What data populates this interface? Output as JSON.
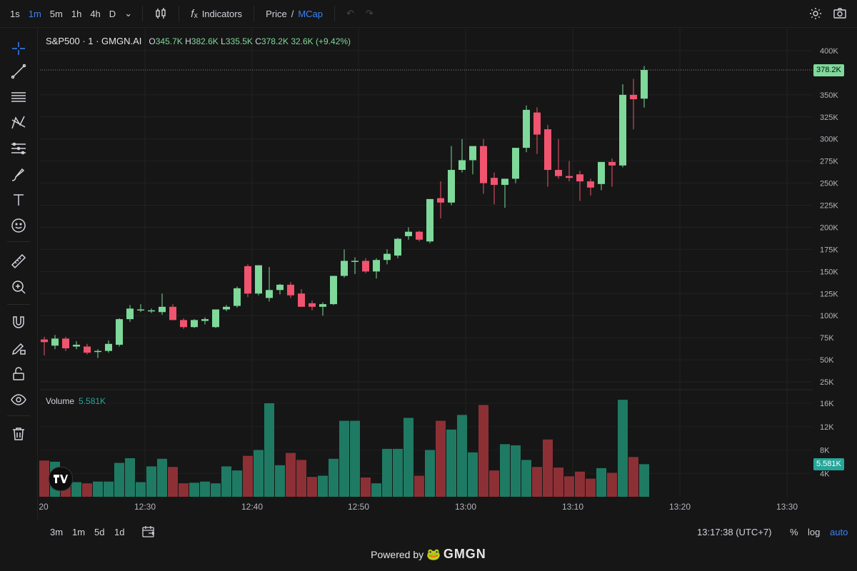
{
  "toolbar": {
    "timeframes": [
      "1s",
      "1m",
      "5m",
      "1h",
      "4h",
      "D"
    ],
    "active_timeframe": "1m",
    "indicators_label": "Indicators",
    "price_label": "Price",
    "price_sep": "/",
    "mcap_label": "MCap"
  },
  "legend": {
    "symbol": "S&P500 · 1 · GMGN.AI",
    "o_key": "O",
    "o": "345.7K",
    "h_key": "H",
    "h": "382.6K",
    "l_key": "L",
    "l": "335.5K",
    "c_key": "C",
    "c": "378.2K",
    "change": "32.6K (+9.42%)"
  },
  "volume_legend": {
    "label": "Volume",
    "value": "5.581K"
  },
  "price_tag": "378.2K",
  "volume_tag": "5.581K",
  "bottom": {
    "ranges": [
      "3m",
      "1m",
      "5d",
      "1d"
    ],
    "clock": "13:17:38 (UTC+7)",
    "percent": "%",
    "log": "log",
    "auto": "auto"
  },
  "footer": {
    "powered": "Powered by",
    "brand": "GMGN"
  },
  "colors": {
    "up": "#7ed99a",
    "down": "#f0546f",
    "vol_up": "#1f7a63",
    "vol_down": "#8c3036",
    "bg": "#161616",
    "accent": "#3b82f6"
  },
  "chart_data": {
    "type": "candlestick",
    "x_ticks": [
      "20",
      "12:30",
      "12:40",
      "12:50",
      "13:00",
      "13:10",
      "13:20",
      "13:30"
    ],
    "y_ticks": [
      "400K",
      "350K",
      "325K",
      "300K",
      "275K",
      "250K",
      "225K",
      "200K",
      "175K",
      "150K",
      "125K",
      "100K",
      "75K",
      "50K",
      "25K"
    ],
    "vol_ticks": [
      "16K",
      "12K",
      "8K",
      "4K"
    ],
    "ylim": [
      0,
      400000
    ],
    "vol_ylim": [
      0,
      17500
    ],
    "candles": [
      {
        "o": 73,
        "h": 76,
        "l": 55,
        "c": 70
      },
      {
        "o": 66,
        "h": 78,
        "l": 62,
        "c": 74
      },
      {
        "o": 74,
        "h": 76,
        "l": 60,
        "c": 63
      },
      {
        "o": 65,
        "h": 71,
        "l": 62,
        "c": 67
      },
      {
        "o": 65,
        "h": 68,
        "l": 56,
        "c": 58
      },
      {
        "o": 59,
        "h": 62,
        "l": 52,
        "c": 60
      },
      {
        "o": 60,
        "h": 72,
        "l": 58,
        "c": 68
      },
      {
        "o": 67,
        "h": 97,
        "l": 65,
        "c": 96
      },
      {
        "o": 96,
        "h": 112,
        "l": 93,
        "c": 108
      },
      {
        "o": 106,
        "h": 113,
        "l": 104,
        "c": 107
      },
      {
        "o": 105,
        "h": 108,
        "l": 103,
        "c": 106
      },
      {
        "o": 104,
        "h": 125,
        "l": 101,
        "c": 110
      },
      {
        "o": 110,
        "h": 113,
        "l": 95,
        "c": 95
      },
      {
        "o": 95,
        "h": 97,
        "l": 85,
        "c": 87
      },
      {
        "o": 87,
        "h": 96,
        "l": 86,
        "c": 95
      },
      {
        "o": 94,
        "h": 98,
        "l": 90,
        "c": 96
      },
      {
        "o": 87,
        "h": 104,
        "l": 86,
        "c": 107
      },
      {
        "o": 107,
        "h": 112,
        "l": 105,
        "c": 110
      },
      {
        "o": 111,
        "h": 133,
        "l": 109,
        "c": 131
      },
      {
        "o": 156,
        "h": 158,
        "l": 121,
        "c": 125
      },
      {
        "o": 125,
        "h": 157,
        "l": 123,
        "c": 157
      },
      {
        "o": 120,
        "h": 155,
        "l": 116,
        "c": 129
      },
      {
        "o": 129,
        "h": 136,
        "l": 124,
        "c": 135
      },
      {
        "o": 135,
        "h": 138,
        "l": 120,
        "c": 123
      },
      {
        "o": 125,
        "h": 130,
        "l": 110,
        "c": 110
      },
      {
        "o": 114,
        "h": 117,
        "l": 106,
        "c": 110
      },
      {
        "o": 110,
        "h": 115,
        "l": 100,
        "c": 113
      },
      {
        "o": 113,
        "h": 145,
        "l": 112,
        "c": 145
      },
      {
        "o": 145,
        "h": 175,
        "l": 143,
        "c": 162
      },
      {
        "o": 162,
        "h": 166,
        "l": 147,
        "c": 162
      },
      {
        "o": 162,
        "h": 165,
        "l": 148,
        "c": 150
      },
      {
        "o": 150,
        "h": 165,
        "l": 142,
        "c": 163
      },
      {
        "o": 163,
        "h": 175,
        "l": 158,
        "c": 170
      },
      {
        "o": 168,
        "h": 188,
        "l": 165,
        "c": 187
      },
      {
        "o": 190,
        "h": 200,
        "l": 186,
        "c": 195
      },
      {
        "o": 195,
        "h": 196,
        "l": 184,
        "c": 186
      },
      {
        "o": 184,
        "h": 232,
        "l": 182,
        "c": 232
      },
      {
        "o": 233,
        "h": 252,
        "l": 210,
        "c": 228
      },
      {
        "o": 228,
        "h": 292,
        "l": 225,
        "c": 265
      },
      {
        "o": 265,
        "h": 300,
        "l": 262,
        "c": 276
      },
      {
        "o": 276,
        "h": 287,
        "l": 260,
        "c": 292
      },
      {
        "o": 292,
        "h": 300,
        "l": 238,
        "c": 250
      },
      {
        "o": 256,
        "h": 262,
        "l": 226,
        "c": 248
      },
      {
        "o": 248,
        "h": 255,
        "l": 222,
        "c": 255
      },
      {
        "o": 255,
        "h": 290,
        "l": 250,
        "c": 290
      },
      {
        "o": 290,
        "h": 338,
        "l": 285,
        "c": 333
      },
      {
        "o": 330,
        "h": 336,
        "l": 283,
        "c": 305
      },
      {
        "o": 311,
        "h": 316,
        "l": 246,
        "c": 265
      },
      {
        "o": 265,
        "h": 300,
        "l": 255,
        "c": 258
      },
      {
        "o": 258,
        "h": 275,
        "l": 252,
        "c": 256
      },
      {
        "o": 260,
        "h": 264,
        "l": 230,
        "c": 252
      },
      {
        "o": 252,
        "h": 255,
        "l": 236,
        "c": 245
      },
      {
        "o": 249,
        "h": 271,
        "l": 242,
        "c": 274
      },
      {
        "o": 274,
        "h": 278,
        "l": 246,
        "c": 270
      },
      {
        "o": 270,
        "h": 362,
        "l": 268,
        "c": 350
      },
      {
        "o": 350,
        "h": 368,
        "l": 311,
        "c": 345
      },
      {
        "o": 345.7,
        "h": 382.6,
        "l": 335.5,
        "c": 378.2
      }
    ],
    "volumes": [
      6.2,
      6.0,
      4.1,
      2.5,
      2.3,
      2.6,
      2.6,
      5.8,
      6.6,
      2.5,
      5.2,
      6.5,
      5.1,
      2.3,
      2.4,
      2.6,
      2.3,
      5.2,
      4.5,
      7.0,
      8.0,
      16.0,
      5.4,
      7.5,
      6.3,
      3.4,
      3.6,
      6.5,
      13.0,
      13.0,
      3.3,
      2.3,
      8.2,
      8.2,
      13.5,
      3.6,
      8.0,
      13.0,
      11.5,
      14.0,
      7.6,
      15.7,
      4.5,
      9.0,
      8.8,
      6.3,
      5.1,
      9.8,
      5.0,
      3.5,
      4.3,
      3.1,
      4.9,
      4.1,
      16.6,
      6.8,
      5.58
    ]
  }
}
